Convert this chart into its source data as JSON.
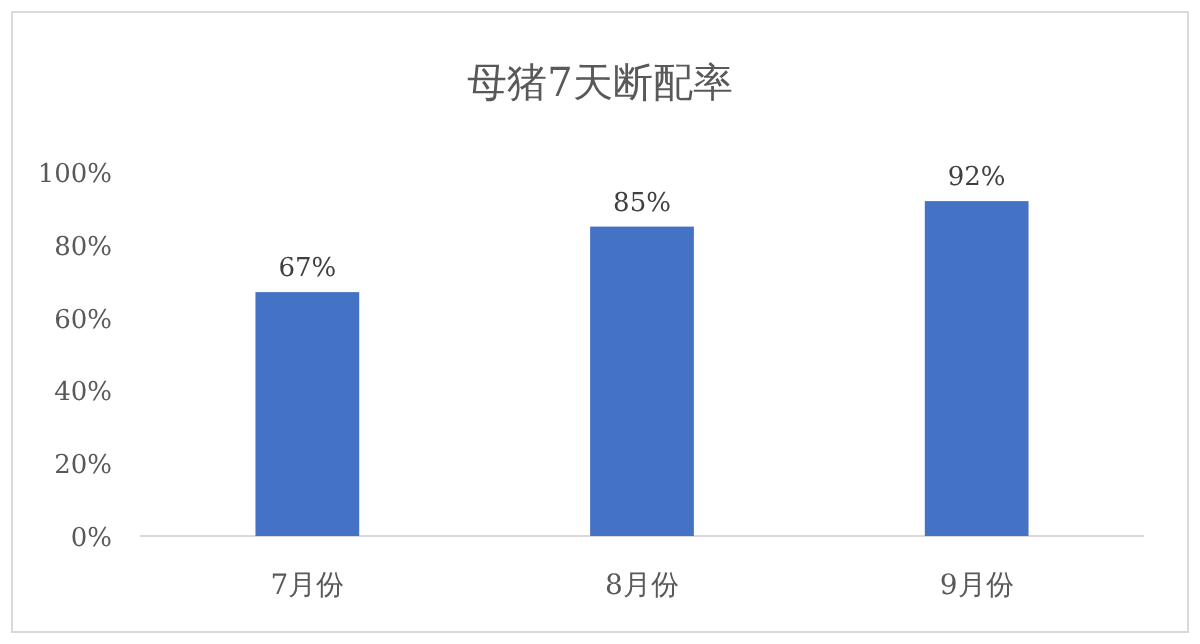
{
  "chart_data": {
    "type": "bar",
    "title": "母猪7天断配率",
    "categories": [
      "7月份",
      "8月份",
      "9月份"
    ],
    "values": [
      67,
      85,
      92
    ],
    "value_labels": [
      "67%",
      "85%",
      "92%"
    ],
    "color": "#4472c4",
    "ylim": [
      0,
      100
    ],
    "yticks": [
      {
        "value": 0,
        "label": "0%"
      },
      {
        "value": 20,
        "label": "20%"
      },
      {
        "value": 40,
        "label": "40%"
      },
      {
        "value": 60,
        "label": "60%"
      },
      {
        "value": 80,
        "label": "80%"
      },
      {
        "value": 100,
        "label": "100%"
      }
    ]
  }
}
